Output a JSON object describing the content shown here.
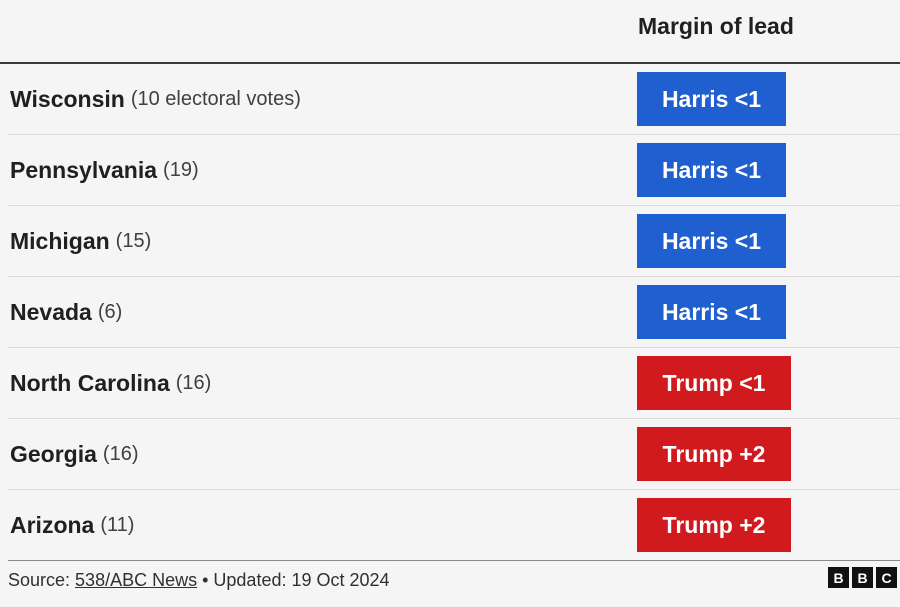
{
  "chart_data": {
    "type": "table",
    "columns": [
      "",
      "Margin of lead"
    ],
    "rows": [
      {
        "state": "Wisconsin",
        "votes_label": "(10 electoral votes)",
        "lead": "Harris <1",
        "party": "harris",
        "color": "#1f5fd0"
      },
      {
        "state": "Pennsylvania",
        "votes_label": "(19)",
        "lead": "Harris <1",
        "party": "harris",
        "color": "#1f5fd0"
      },
      {
        "state": "Michigan",
        "votes_label": "(15)",
        "lead": "Harris <1",
        "party": "harris",
        "color": "#1f5fd0"
      },
      {
        "state": "Nevada",
        "votes_label": "(6)",
        "lead": "Harris <1",
        "party": "harris",
        "color": "#1f5fd0"
      },
      {
        "state": "North Carolina",
        "votes_label": "(16)",
        "lead": "Trump <1",
        "party": "trump",
        "color": "#d11a1d"
      },
      {
        "state": "Georgia",
        "votes_label": "(16)",
        "lead": "Trump +2",
        "party": "trump",
        "color": "#d11a1d"
      },
      {
        "state": "Arizona",
        "votes_label": "(11)",
        "lead": "Trump +2",
        "party": "trump",
        "color": "#d11a1d"
      }
    ]
  },
  "header": {
    "column_title": "Margin of lead"
  },
  "footer": {
    "source_prefix": "Source: ",
    "source_link": "538/ABC News",
    "updated": " • Updated: 19 Oct 2024"
  },
  "logo": {
    "letters": [
      "B",
      "B",
      "C"
    ]
  }
}
